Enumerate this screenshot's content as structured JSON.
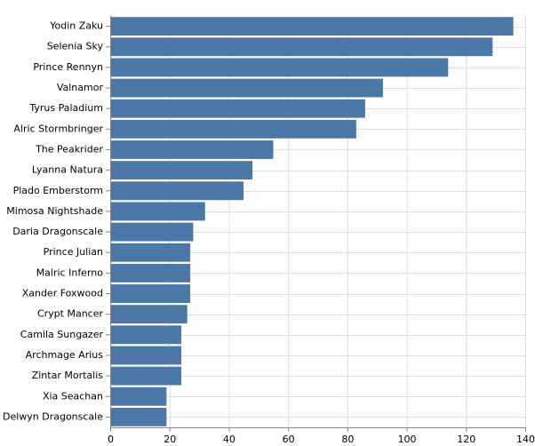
{
  "chart_data": {
    "type": "bar",
    "orientation": "horizontal",
    "categories": [
      "Yodin Zaku",
      "Selenia Sky",
      "Prince Rennyn",
      "Valnamor",
      "Tyrus Paladium",
      "Alric Stormbringer",
      "The Peakrider",
      "Lyanna Natura",
      "Plado Emberstorm",
      "Mimosa Nightshade",
      "Daria Dragonscale",
      "Prince Julian",
      "Malric Inferno",
      "Xander Foxwood",
      "Crypt Mancer",
      "Camila Sungazer",
      "Archmage Arius",
      "Zintar Mortalis",
      "Xia Seachan",
      "Delwyn Dragonscale"
    ],
    "values": [
      136,
      129,
      114,
      92,
      86,
      83,
      55,
      48,
      45,
      32,
      28,
      27,
      27,
      27,
      26,
      24,
      24,
      24,
      19,
      19
    ],
    "title": "",
    "xlabel": "",
    "ylabel": "",
    "xlim": [
      0,
      140
    ],
    "x_ticks": [
      0,
      20,
      40,
      60,
      80,
      100,
      120,
      140
    ],
    "grid": true,
    "legend": "none",
    "bar_color": "#4c78a8",
    "grid_color": "#dddddd",
    "axis_color": "#888888"
  }
}
